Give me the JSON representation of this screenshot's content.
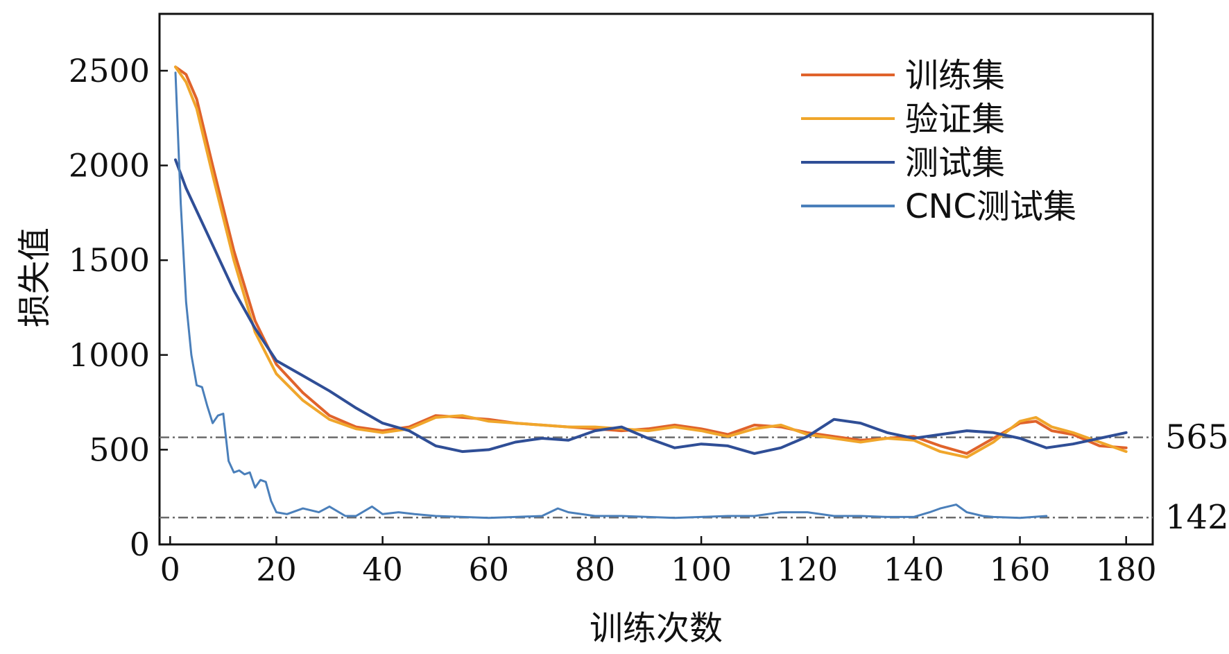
{
  "chart_data": {
    "type": "line",
    "title": "",
    "xlabel": "训练次数",
    "ylabel": "损失值",
    "xlim": [
      -2,
      185
    ],
    "ylim": [
      0,
      2800
    ],
    "xticks": [
      0,
      20,
      40,
      60,
      80,
      100,
      120,
      140,
      160,
      180
    ],
    "yticks": [
      0,
      500,
      1000,
      1500,
      2000,
      2500
    ],
    "grid": false,
    "legend_position": "top-right",
    "reference_lines": [
      {
        "value": 565,
        "label": "565",
        "color": "#6b6b6b"
      },
      {
        "value": 142,
        "label": "142",
        "color": "#6b6b6b"
      }
    ],
    "series": [
      {
        "name": "训练集",
        "color": "#e0632b",
        "x": [
          1,
          3,
          5,
          8,
          12,
          16,
          20,
          25,
          30,
          35,
          40,
          45,
          50,
          55,
          60,
          65,
          70,
          75,
          80,
          85,
          90,
          95,
          100,
          105,
          110,
          115,
          120,
          125,
          130,
          135,
          140,
          145,
          150,
          155,
          160,
          163,
          166,
          170,
          175,
          180
        ],
        "values": [
          2520,
          2480,
          2350,
          2000,
          1550,
          1180,
          950,
          800,
          680,
          620,
          600,
          620,
          680,
          670,
          660,
          640,
          630,
          620,
          610,
          600,
          610,
          630,
          610,
          580,
          630,
          620,
          590,
          570,
          550,
          560,
          570,
          520,
          480,
          560,
          640,
          650,
          600,
          580,
          520,
          510
        ]
      },
      {
        "name": "验证集",
        "color": "#f0a62b",
        "x": [
          1,
          3,
          5,
          8,
          12,
          16,
          20,
          25,
          30,
          35,
          40,
          45,
          50,
          55,
          60,
          65,
          70,
          75,
          80,
          85,
          90,
          95,
          100,
          105,
          110,
          115,
          120,
          125,
          130,
          135,
          140,
          145,
          150,
          155,
          160,
          163,
          166,
          170,
          175,
          180
        ],
        "values": [
          2520,
          2440,
          2300,
          1950,
          1500,
          1120,
          900,
          760,
          660,
          610,
          590,
          610,
          670,
          680,
          650,
          640,
          630,
          620,
          620,
          610,
          600,
          620,
          600,
          570,
          610,
          630,
          580,
          560,
          540,
          560,
          550,
          490,
          460,
          540,
          650,
          670,
          620,
          590,
          540,
          490
        ]
      },
      {
        "name": "测试集",
        "color": "#2f4e96",
        "x": [
          1,
          3,
          5,
          8,
          12,
          16,
          20,
          25,
          30,
          35,
          40,
          45,
          50,
          55,
          60,
          65,
          70,
          75,
          80,
          85,
          90,
          95,
          100,
          105,
          110,
          115,
          120,
          125,
          130,
          135,
          140,
          145,
          150,
          155,
          160,
          165,
          170,
          175,
          180
        ],
        "values": [
          2030,
          1880,
          1760,
          1580,
          1340,
          1140,
          970,
          890,
          810,
          720,
          640,
          600,
          520,
          490,
          500,
          540,
          560,
          550,
          600,
          620,
          560,
          510,
          530,
          520,
          480,
          510,
          570,
          660,
          640,
          590,
          560,
          580,
          600,
          590,
          560,
          510,
          530,
          560,
          590
        ]
      },
      {
        "name": "CNC测试集",
        "color": "#4a7fba",
        "x": [
          1,
          2,
          3,
          4,
          5,
          6,
          7,
          8,
          9,
          10,
          11,
          12,
          13,
          14,
          15,
          16,
          17,
          18,
          19,
          20,
          22,
          25,
          28,
          30,
          33,
          35,
          38,
          40,
          43,
          46,
          50,
          55,
          60,
          65,
          70,
          73,
          75,
          80,
          85,
          90,
          95,
          100,
          105,
          110,
          115,
          120,
          125,
          130,
          135,
          140,
          143,
          145,
          148,
          150,
          153,
          155,
          160,
          165
        ],
        "values": [
          2490,
          1800,
          1280,
          1000,
          840,
          830,
          730,
          640,
          680,
          690,
          440,
          380,
          390,
          370,
          380,
          300,
          340,
          330,
          230,
          170,
          160,
          190,
          170,
          200,
          150,
          150,
          200,
          160,
          170,
          160,
          150,
          145,
          140,
          145,
          150,
          190,
          170,
          150,
          150,
          145,
          140,
          145,
          150,
          150,
          170,
          170,
          150,
          150,
          145,
          145,
          170,
          190,
          210,
          170,
          150,
          145,
          140,
          150
        ]
      }
    ]
  }
}
